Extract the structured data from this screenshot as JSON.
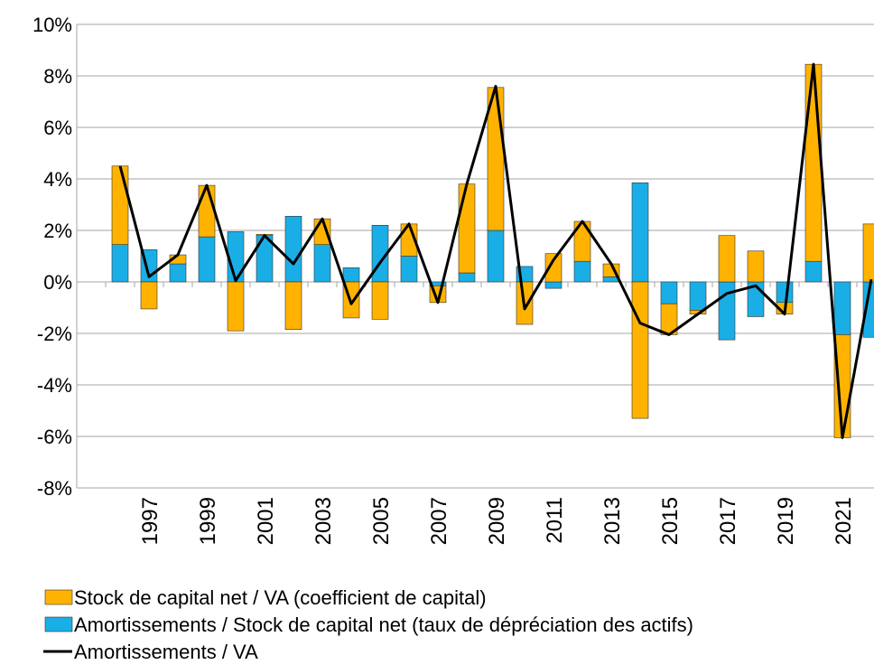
{
  "chart_data": {
    "type": "bar",
    "categories": [
      null,
      null,
      "1997",
      null,
      "1999",
      null,
      "2001",
      null,
      "2003",
      null,
      "2005",
      null,
      "2007",
      null,
      "2009",
      null,
      "2011",
      null,
      "2013",
      null,
      "2015",
      null,
      "2017",
      null,
      "2019",
      null,
      "2021",
      null
    ],
    "series": [
      {
        "name": "Stock de capital net / VA (coefficient de capital)",
        "color": "#ffb300",
        "type": "bar",
        "values": [
          null,
          3.05,
          -1.05,
          0.35,
          2.0,
          -1.9,
          0.05,
          -1.85,
          1.0,
          -1.4,
          -1.45,
          1.25,
          -0.65,
          3.45,
          5.55,
          -1.65,
          1.1,
          1.55,
          0.5,
          -5.3,
          -1.2,
          -0.15,
          1.8,
          1.2,
          -0.45,
          7.65,
          -4.0,
          2.25
        ]
      },
      {
        "name": "Amortissements / Stock de capital net (taux de dépréciation des actifs)",
        "color": "#1aaee6",
        "type": "bar",
        "values": [
          null,
          1.45,
          1.25,
          0.7,
          1.75,
          1.95,
          1.8,
          2.55,
          1.45,
          0.55,
          2.2,
          1.0,
          -0.15,
          0.35,
          2.0,
          0.6,
          -0.25,
          0.8,
          0.2,
          3.85,
          -0.85,
          -1.1,
          -2.25,
          -1.35,
          -0.8,
          0.8,
          -2.05,
          -2.15
        ]
      },
      {
        "name": "Amortissements / VA",
        "color": "#000000",
        "type": "line",
        "values": [
          null,
          4.5,
          0.2,
          1.05,
          3.75,
          0.05,
          1.8,
          0.7,
          2.45,
          -0.85,
          0.75,
          2.25,
          -0.8,
          3.8,
          7.6,
          -1.05,
          0.85,
          2.35,
          0.7,
          -1.6,
          -2.05,
          -1.25,
          -0.45,
          -0.15,
          -1.25,
          8.45,
          -6.05,
          0.1
        ]
      }
    ],
    "ylim": [
      -8,
      10
    ],
    "yticks": [
      {
        "value": -8,
        "label": "-8%"
      },
      {
        "value": -6,
        "label": "-6%"
      },
      {
        "value": -4,
        "label": "-4%"
      },
      {
        "value": -2,
        "label": "-2%"
      },
      {
        "value": 0,
        "label": "0%"
      },
      {
        "value": 2,
        "label": "2%"
      },
      {
        "value": 4,
        "label": "4%"
      },
      {
        "value": 6,
        "label": "6%"
      },
      {
        "value": 8,
        "label": "8%"
      },
      {
        "value": 10,
        "label": "10%"
      }
    ],
    "grid": true
  }
}
